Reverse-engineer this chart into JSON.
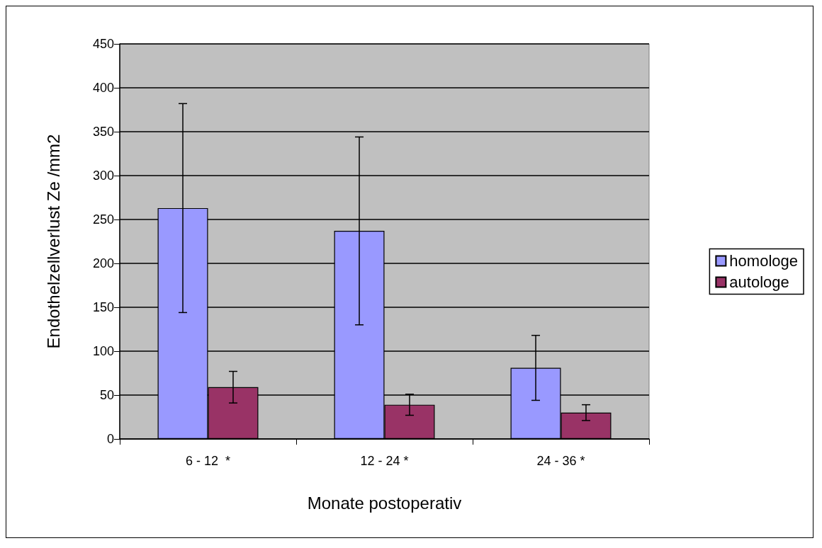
{
  "chart_data": {
    "type": "bar",
    "xlabel": "Monate postoperativ",
    "ylabel": "Endothelzellverlust Ze /mm2",
    "categories": [
      "6 - 12  *",
      "12 - 24 *",
      "24 - 36 *"
    ],
    "series": [
      {
        "name": "homologe",
        "color": "#9999ff",
        "values": [
          263,
          237,
          81
        ],
        "errors": [
          119,
          107,
          37
        ]
      },
      {
        "name": "autologe",
        "color": "#993366",
        "values": [
          59,
          39,
          30
        ],
        "errors": [
          18,
          12,
          9
        ]
      }
    ],
    "ylim": [
      0,
      450
    ],
    "yticks": [
      0,
      50,
      100,
      150,
      200,
      250,
      300,
      350,
      400,
      450
    ],
    "grid": "y",
    "legend": "right"
  }
}
